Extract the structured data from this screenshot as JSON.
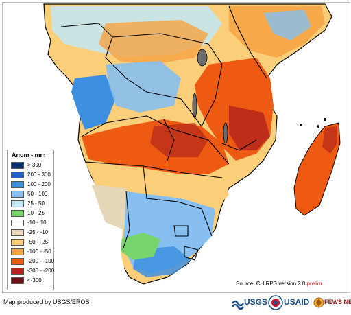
{
  "legend": {
    "title": "Anom - mm",
    "items": [
      {
        "label": "> 300",
        "color": "#08306b"
      },
      {
        "label": "200 - 300",
        "color": "#1f5fbf"
      },
      {
        "label": "100 - 200",
        "color": "#3d8fe0"
      },
      {
        "label": "50 - 100",
        "color": "#86bff0"
      },
      {
        "label": "25 - 50",
        "color": "#bfe7f5"
      },
      {
        "label": "10 - 25",
        "color": "#77d56b"
      },
      {
        "label": "-10 - 10",
        "color": "#ffffff"
      },
      {
        "label": "-25 - -10",
        "color": "#e6d7b8"
      },
      {
        "label": "-50 - -25",
        "color": "#fbcf7a"
      },
      {
        "label": "-100 - -50",
        "color": "#f7a343"
      },
      {
        "label": "-200 - -100",
        "color": "#ef5a12"
      },
      {
        "label": "-300 - -200",
        "color": "#b4261b"
      },
      {
        "label": "<-300",
        "color": "#6b1014"
      }
    ]
  },
  "source": {
    "prefix": "Source: CHIRPS version 2.0",
    "flag": "prelim"
  },
  "credit": "Map produced by USGS/EROS",
  "logos": {
    "usgs": "USGS",
    "usaid": "USAID",
    "fews": "FEWS NET"
  }
}
